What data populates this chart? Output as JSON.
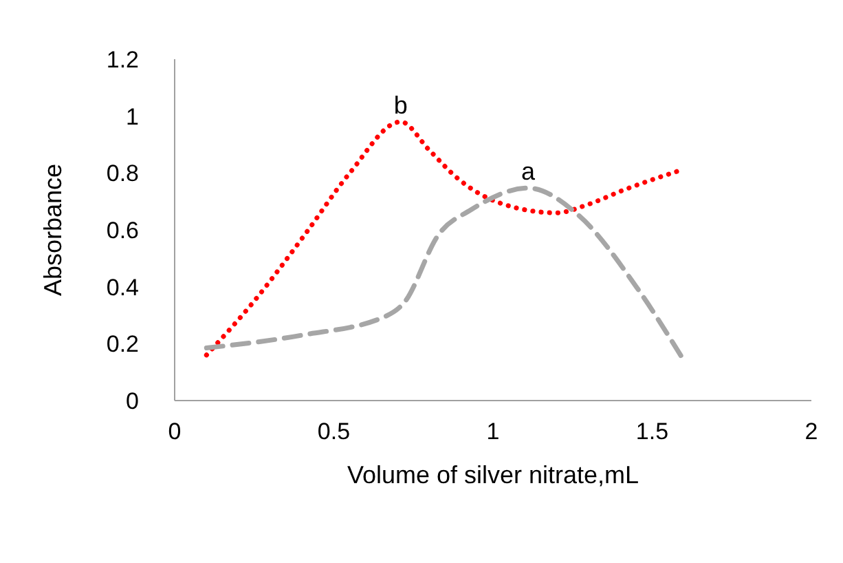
{
  "chart_data": {
    "type": "line",
    "xlabel": "Volume of silver nitrate,mL",
    "ylabel": "Absorbance",
    "series": [
      {
        "name": "b",
        "x": [
          0.1,
          0.25,
          0.41,
          0.55,
          0.71,
          0.8,
          0.89,
          1.02,
          1.2,
          1.3,
          1.41,
          1.59
        ],
        "values": [
          0.16,
          0.35,
          0.585,
          0.8,
          0.98,
          0.88,
          0.78,
          0.695,
          0.66,
          0.69,
          0.74,
          0.81
        ],
        "color": "#ff0000",
        "line_style": "dotted"
      },
      {
        "name": "a",
        "x": [
          0.1,
          0.4,
          0.66,
          0.72,
          0.83,
          0.93,
          1.11,
          1.27,
          1.45,
          1.6
        ],
        "values": [
          0.185,
          0.23,
          0.295,
          0.343,
          0.585,
          0.67,
          0.747,
          0.65,
          0.4,
          0.14
        ],
        "color": "#a6a6a6",
        "line_style": "dashed"
      }
    ],
    "xlim": [
      0,
      2
    ],
    "xticks": [
      0,
      0.5,
      1,
      1.5,
      2
    ],
    "ylim": [
      0,
      1.2
    ],
    "yticks": [
      0,
      0.2,
      0.4,
      0.6,
      0.8,
      1,
      1.2
    ],
    "grid": false,
    "legend": false,
    "marker": "none"
  }
}
